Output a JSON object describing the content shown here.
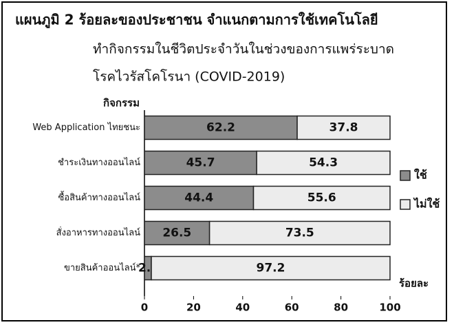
{
  "chart_data": {
    "type": "stacked_barh",
    "title": [
      "แผนภูมิ 2 ร้อยละของประชาชน จำแนกตามการใช้เทคโนโลยี",
      "ทำกิจกรรมในชีวิตประจำวันในช่วงของการแพร่ระบาด",
      "โรคไวรัสโคโรนา (COVID-2019)"
    ],
    "y_label": "กิจกรรม",
    "x_label": "ร้อยละ",
    "categories": [
      "Web Application ไทยชนะ",
      "ชำระเงินทางออนไลน์",
      "ซื้อสินค้าทางออนไลน์",
      "สั่งอาหารทางออนไลน์",
      "ขายสินค้าออนไลน์*"
    ],
    "series": [
      {
        "name": "ใช้",
        "color": "#8c8c8c",
        "values": [
          62.2,
          45.7,
          44.4,
          26.5,
          2.8
        ]
      },
      {
        "name": "ไม่ใช้",
        "color": "#ececec",
        "values": [
          37.8,
          54.3,
          55.6,
          73.5,
          97.2
        ]
      }
    ],
    "xlim": [
      0,
      100
    ],
    "xticks": [
      0,
      20,
      40,
      60,
      80,
      100
    ],
    "legend": "right"
  }
}
